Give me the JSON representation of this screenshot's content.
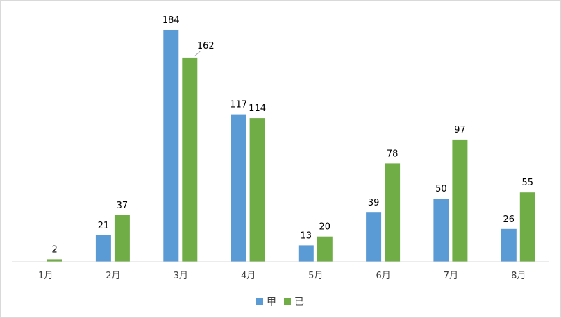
{
  "chart_data": {
    "type": "bar",
    "title": "",
    "xlabel": "",
    "ylabel": "",
    "categories": [
      "1月",
      "2月",
      "3月",
      "4月",
      "5月",
      "6月",
      "7月",
      "8月"
    ],
    "series": [
      {
        "name": "甲",
        "color": "#5b9bd5",
        "values": [
          0,
          21,
          184,
          117,
          13,
          39,
          50,
          26
        ]
      },
      {
        "name": "已",
        "color": "#70ad47",
        "values": [
          2,
          37,
          162,
          114,
          20,
          78,
          97,
          55
        ]
      }
    ],
    "value_labels": [
      [
        "",
        "21",
        "184",
        "117",
        "13",
        "39",
        "50",
        "26"
      ],
      [
        "2",
        "37",
        "162",
        "114",
        "20",
        "78",
        "97",
        "55"
      ]
    ],
    "ylim": [
      0,
      184
    ],
    "grid": false,
    "legend": "bottom"
  }
}
